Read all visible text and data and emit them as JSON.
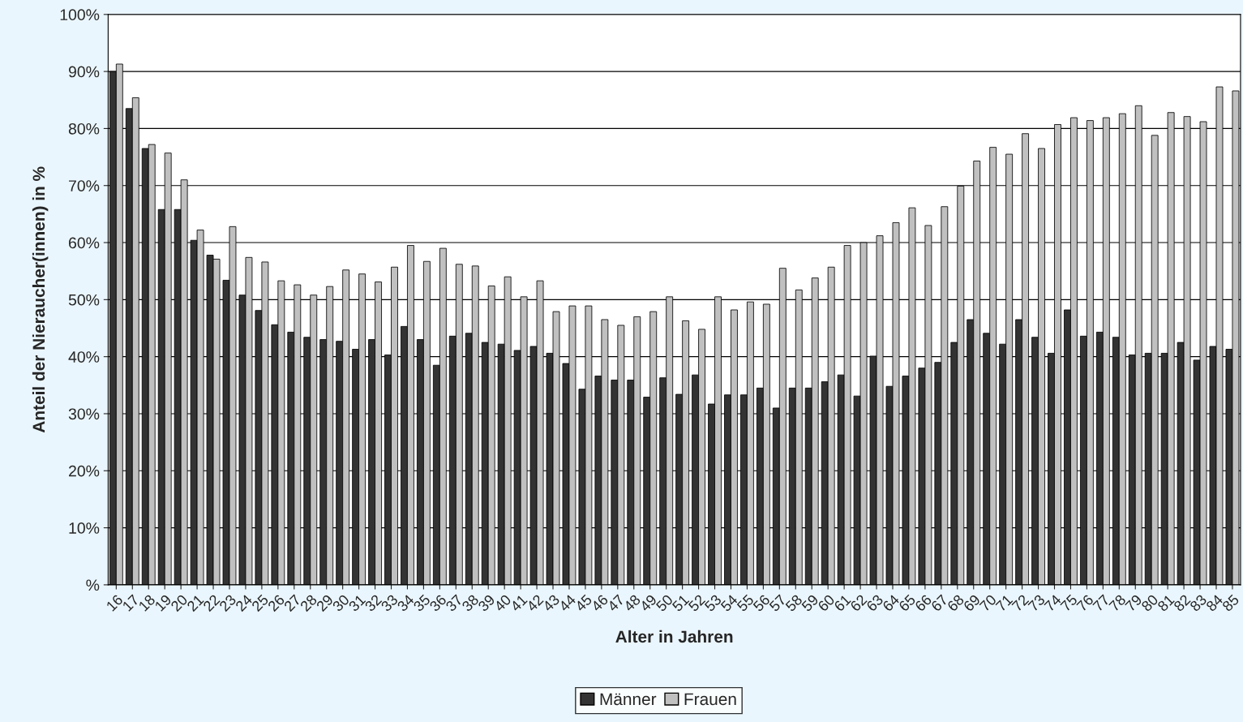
{
  "chart_data": {
    "type": "bar",
    "xlabel": "Alter in Jahren",
    "ylabel": "Anteil der Nieraucher(innen) in %",
    "categories": [
      "16",
      "17",
      "18",
      "19",
      "20",
      "21",
      "22",
      "23",
      "24",
      "25",
      "26",
      "27",
      "28",
      "29",
      "30",
      "31",
      "32",
      "33",
      "34",
      "35",
      "36",
      "37",
      "38",
      "39",
      "40",
      "41",
      "42",
      "43",
      "44",
      "45",
      "46",
      "47",
      "48",
      "49",
      "50",
      "51",
      "52",
      "53",
      "54",
      "55",
      "56",
      "57",
      "58",
      "59",
      "60",
      "61",
      "62",
      "63",
      "64",
      "65",
      "66",
      "67",
      "68",
      "69",
      "70",
      "71",
      "72",
      "73",
      "74",
      "75",
      "76",
      "77",
      "78",
      "79",
      "80",
      "81",
      "82",
      "83",
      "84",
      "85"
    ],
    "series": [
      {
        "name": "Männer",
        "color": "#333333",
        "values": [
          90,
          83.5,
          76.5,
          65.8,
          65.8,
          60.4,
          57.8,
          53.4,
          50.8,
          48.1,
          45.6,
          44.3,
          43.4,
          43,
          42.7,
          41.3,
          43,
          40.3,
          45.3,
          43,
          38.5,
          43.6,
          44.1,
          42.5,
          42.2,
          41.1,
          41.8,
          40.6,
          38.8,
          34.3,
          36.6,
          35.9,
          35.9,
          32.9,
          36.3,
          33.4,
          36.8,
          31.7,
          33.3,
          33.3,
          34.5,
          31,
          34.5,
          34.5,
          35.6,
          36.8,
          33.1,
          40.1,
          34.8,
          36.6,
          38,
          39,
          42.5,
          46.5,
          44.1,
          42.2,
          46.5,
          43.4,
          40.6,
          48.2,
          43.6,
          44.3,
          43.4,
          40.3,
          40.6,
          40.6,
          42.5,
          39.4,
          41.8,
          41.3
        ]
      },
      {
        "name": "Frauen",
        "color": "#c0c0c0",
        "values": [
          91.3,
          85.4,
          77.2,
          75.7,
          71,
          62.2,
          57.1,
          62.8,
          57.4,
          56.6,
          53.3,
          52.6,
          50.8,
          52.3,
          55.2,
          54.5,
          53.1,
          55.7,
          59.5,
          56.7,
          59,
          56.2,
          55.9,
          52.4,
          54,
          50.5,
          53.3,
          47.9,
          48.9,
          48.9,
          46.5,
          45.5,
          47,
          47.9,
          50.5,
          46.3,
          44.8,
          50.5,
          48.2,
          49.6,
          49.2,
          55.5,
          51.7,
          53.8,
          55.7,
          59.5,
          60,
          61.2,
          63.5,
          66.1,
          63,
          66.3,
          69.9,
          74.3,
          76.7,
          75.5,
          79.1,
          76.5,
          80.7,
          81.9,
          81.4,
          81.9,
          82.6,
          84,
          78.8,
          82.8,
          82.1,
          81.2,
          87.3,
          86.6
        ]
      }
    ],
    "ylim": [
      0,
      100
    ],
    "yticks": [
      {
        "value": 0,
        "label": "%"
      },
      {
        "value": 10,
        "label": "10%"
      },
      {
        "value": 20,
        "label": "20%"
      },
      {
        "value": 30,
        "label": "30%"
      },
      {
        "value": 40,
        "label": "40%"
      },
      {
        "value": 50,
        "label": "50%"
      },
      {
        "value": 60,
        "label": "60%"
      },
      {
        "value": 70,
        "label": "70%"
      },
      {
        "value": 80,
        "label": "80%"
      },
      {
        "value": 90,
        "label": "90%"
      },
      {
        "value": 100,
        "label": "100%"
      }
    ],
    "grid": "y",
    "legend": "bottom"
  }
}
